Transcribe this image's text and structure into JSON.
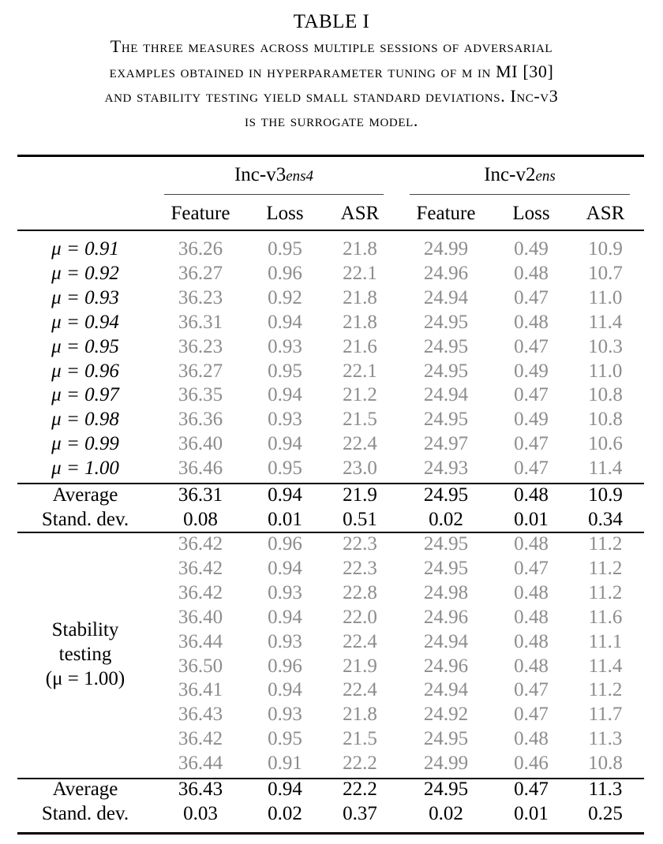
{
  "table_label": "TABLE I",
  "caption_lines": [
    "The three measures across multiple sessions of adversarial",
    "examples obtained in hyperparameter tuning of μ in MI [30]",
    "and stability testing yield small standard deviations. Inc-v3",
    "is the surrogate model."
  ],
  "groups": [
    {
      "base": "Inc-v3",
      "sub": "ens4"
    },
    {
      "base": "Inc-v2",
      "sub": "ens"
    }
  ],
  "columns": [
    "Feature",
    "Loss",
    "ASR",
    "Feature",
    "Loss",
    "ASR"
  ],
  "mu_rows": [
    {
      "label": "μ = 0.91",
      "values": [
        "36.26",
        "0.95",
        "21.8",
        "24.99",
        "0.49",
        "10.9"
      ]
    },
    {
      "label": "μ = 0.92",
      "values": [
        "36.27",
        "0.96",
        "22.1",
        "24.96",
        "0.48",
        "10.7"
      ]
    },
    {
      "label": "μ = 0.93",
      "values": [
        "36.23",
        "0.92",
        "21.8",
        "24.94",
        "0.47",
        "11.0"
      ]
    },
    {
      "label": "μ = 0.94",
      "values": [
        "36.31",
        "0.94",
        "21.8",
        "24.95",
        "0.48",
        "11.4"
      ]
    },
    {
      "label": "μ = 0.95",
      "values": [
        "36.23",
        "0.93",
        "21.6",
        "24.95",
        "0.47",
        "10.3"
      ]
    },
    {
      "label": "μ = 0.96",
      "values": [
        "36.27",
        "0.95",
        "22.1",
        "24.95",
        "0.49",
        "11.0"
      ]
    },
    {
      "label": "μ = 0.97",
      "values": [
        "36.35",
        "0.94",
        "21.2",
        "24.94",
        "0.47",
        "10.8"
      ]
    },
    {
      "label": "μ = 0.98",
      "values": [
        "36.36",
        "0.93",
        "21.5",
        "24.95",
        "0.49",
        "10.8"
      ]
    },
    {
      "label": "μ = 0.99",
      "values": [
        "36.40",
        "0.94",
        "22.4",
        "24.97",
        "0.47",
        "10.6"
      ]
    },
    {
      "label": "μ = 1.00",
      "values": [
        "36.46",
        "0.95",
        "23.0",
        "24.93",
        "0.47",
        "11.4"
      ]
    }
  ],
  "mu_summary": [
    {
      "label": "Average",
      "values": [
        "36.31",
        "0.94",
        "21.9",
        "24.95",
        "0.48",
        "10.9"
      ]
    },
    {
      "label": "Stand. dev.",
      "values": [
        "0.08",
        "0.01",
        "0.51",
        "0.02",
        "0.01",
        "0.34"
      ]
    }
  ],
  "stability_label": [
    "Stability",
    "testing",
    "(μ = 1.00)"
  ],
  "stability_rows": [
    [
      "36.42",
      "0.96",
      "22.3",
      "24.95",
      "0.48",
      "11.2"
    ],
    [
      "36.42",
      "0.94",
      "22.3",
      "24.95",
      "0.47",
      "11.2"
    ],
    [
      "36.42",
      "0.93",
      "22.8",
      "24.98",
      "0.48",
      "11.2"
    ],
    [
      "36.40",
      "0.94",
      "22.0",
      "24.96",
      "0.48",
      "11.6"
    ],
    [
      "36.44",
      "0.93",
      "22.4",
      "24.94",
      "0.48",
      "11.1"
    ],
    [
      "36.50",
      "0.96",
      "21.9",
      "24.96",
      "0.48",
      "11.4"
    ],
    [
      "36.41",
      "0.94",
      "22.4",
      "24.94",
      "0.47",
      "11.2"
    ],
    [
      "36.43",
      "0.93",
      "21.8",
      "24.92",
      "0.47",
      "11.7"
    ],
    [
      "36.42",
      "0.95",
      "21.5",
      "24.95",
      "0.48",
      "11.3"
    ],
    [
      "36.44",
      "0.91",
      "22.2",
      "24.99",
      "0.46",
      "10.8"
    ]
  ],
  "stability_summary": [
    {
      "label": "Average",
      "values": [
        "36.43",
        "0.94",
        "22.2",
        "24.95",
        "0.47",
        "11.3"
      ]
    },
    {
      "label": "Stand. dev.",
      "values": [
        "0.03",
        "0.02",
        "0.37",
        "0.02",
        "0.01",
        "0.25"
      ]
    }
  ]
}
